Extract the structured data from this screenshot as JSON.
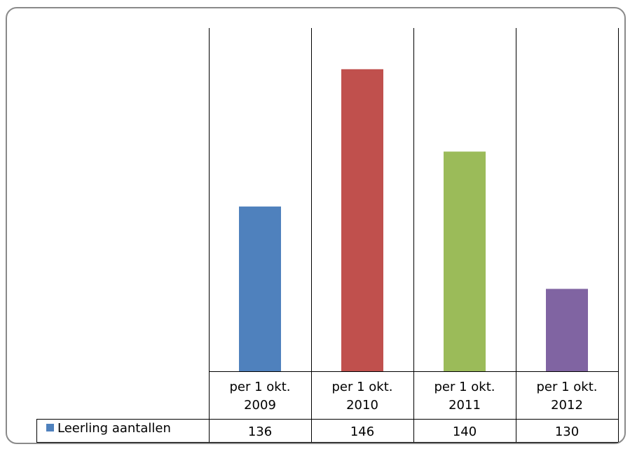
{
  "chart_data": {
    "type": "bar",
    "categories": [
      [
        "per 1 okt.",
        "2009"
      ],
      [
        "per 1 okt.",
        "2010"
      ],
      [
        "per 1 okt.",
        "2011"
      ],
      [
        "per 1 okt.",
        "2012"
      ]
    ],
    "series": [
      {
        "name": "Leerling aantallen",
        "values": [
          136,
          146,
          140,
          130
        ],
        "colors": [
          "#4F81BD",
          "#C0504D",
          "#9BBB59",
          "#8064A2"
        ],
        "legend_color": "#4F81BD"
      }
    ],
    "ylim": [
      124,
      149
    ],
    "grid": false,
    "legend": "data-table",
    "data_table": true
  }
}
